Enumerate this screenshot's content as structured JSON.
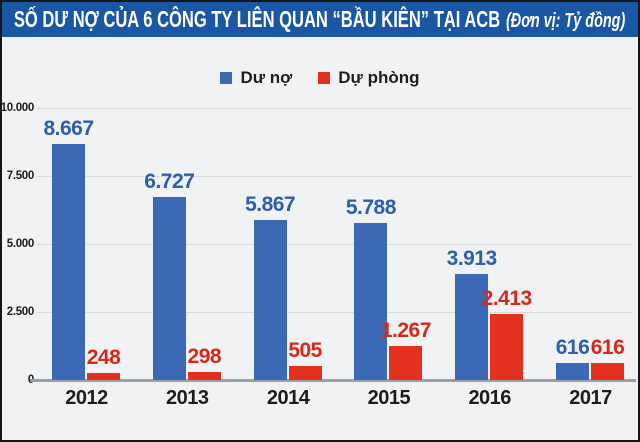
{
  "header": {
    "title": "SỐ DƯ NỢ CỦA 6 CÔNG TY LIÊN QUAN “BẦU KIÊN” TẠI ACB",
    "unit": "(Đơn vị: Tỷ đồng)",
    "bar_color": "#1956a4"
  },
  "chart_data": {
    "type": "bar",
    "title": "SỐ DƯ NỢ CỦA 6 CÔNG TY LIÊN QUAN “BẦU KIÊN” TẠI ACB",
    "unit_note": "(Đơn vị: Tỷ đồng)",
    "categories": [
      "2012",
      "2013",
      "2014",
      "2015",
      "2016",
      "2017"
    ],
    "series": [
      {
        "name": "Dư nợ",
        "key": "du-no",
        "color": "#3c69b5",
        "label_color": "#2d5fae",
        "values": [
          8667,
          6727,
          5867,
          5788,
          3913,
          616
        ],
        "labels": [
          "8.667",
          "6.727",
          "5.867",
          "5.788",
          "3.913",
          "616"
        ]
      },
      {
        "name": "Dự phòng",
        "key": "du-phong",
        "color": "#e4311f",
        "label_color": "#d52a1a",
        "values": [
          248,
          298,
          505,
          1267,
          2413,
          616
        ],
        "labels": [
          "248",
          "298",
          "505",
          "1.267",
          "2.413",
          "616"
        ]
      }
    ],
    "ylim": [
      0,
      10000
    ],
    "yticks": [
      {
        "value": 0,
        "label": "0"
      },
      {
        "value": 2500,
        "label": "2.500"
      },
      {
        "value": 5000,
        "label": "5.000"
      },
      {
        "value": 7500,
        "label": "7.500"
      },
      {
        "value": 10000,
        "label": "10.000"
      }
    ],
    "grid": true,
    "legend_position": "top"
  }
}
